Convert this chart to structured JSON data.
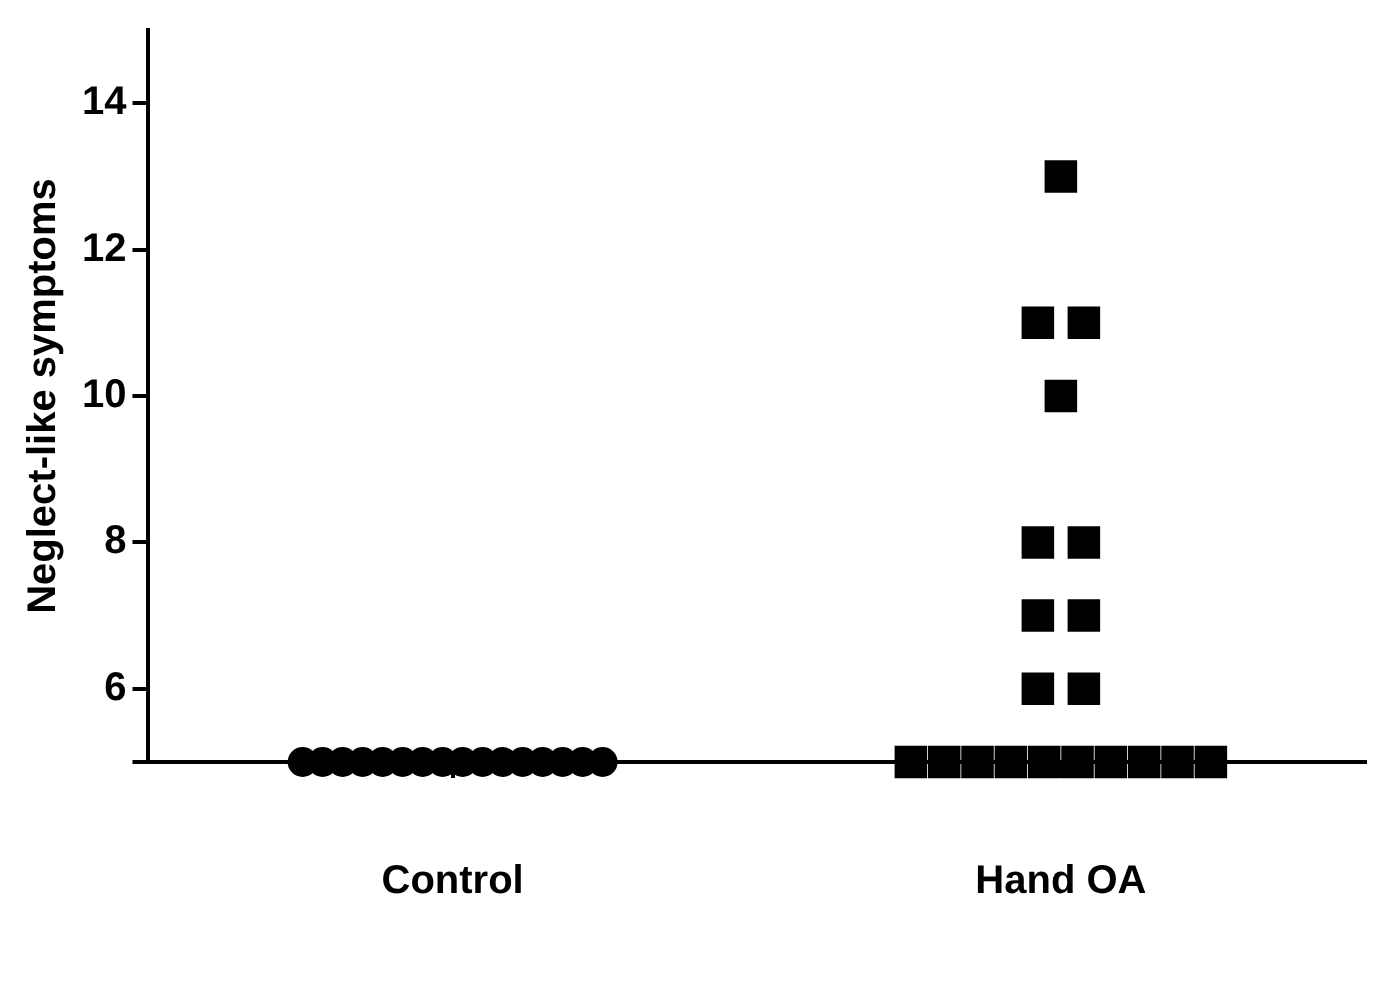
{
  "chart_data": {
    "type": "scatter",
    "ylabel": "Neglect-like symptoms",
    "categories": [
      "Control",
      "Hand OA"
    ],
    "ylim": [
      5,
      15
    ],
    "yticks": [
      {
        "value": 5,
        "label": null
      },
      6,
      8,
      10,
      12,
      14
    ],
    "grid": false,
    "legend": false,
    "series": [
      {
        "color": "#000000",
        "marker": "circle",
        "x": [
          "Control",
          "Control",
          "Control",
          "Control",
          "Control",
          "Control",
          "Control",
          "Control",
          "Control",
          "Control",
          "Control",
          "Control",
          "Control",
          "Control",
          "Control",
          "Control"
        ],
        "values": [
          5,
          5,
          5,
          5,
          5,
          5,
          5,
          5,
          5,
          5,
          5,
          5,
          5,
          5,
          5,
          5
        ]
      },
      {
        "color": "#000000",
        "marker": "square",
        "x": [
          "Hand OA",
          "Hand OA",
          "Hand OA",
          "Hand OA",
          "Hand OA",
          "Hand OA",
          "Hand OA",
          "Hand OA",
          "Hand OA",
          "Hand OA",
          "Hand OA",
          "Hand OA",
          "Hand OA",
          "Hand OA",
          "Hand OA",
          "Hand OA",
          "Hand OA",
          "Hand OA",
          "Hand OA",
          "Hand OA"
        ],
        "values": [
          13,
          11,
          11,
          10,
          8,
          8,
          7,
          7,
          6,
          6,
          5,
          5,
          5,
          5,
          5,
          5,
          5,
          5,
          5,
          5
        ]
      }
    ]
  }
}
